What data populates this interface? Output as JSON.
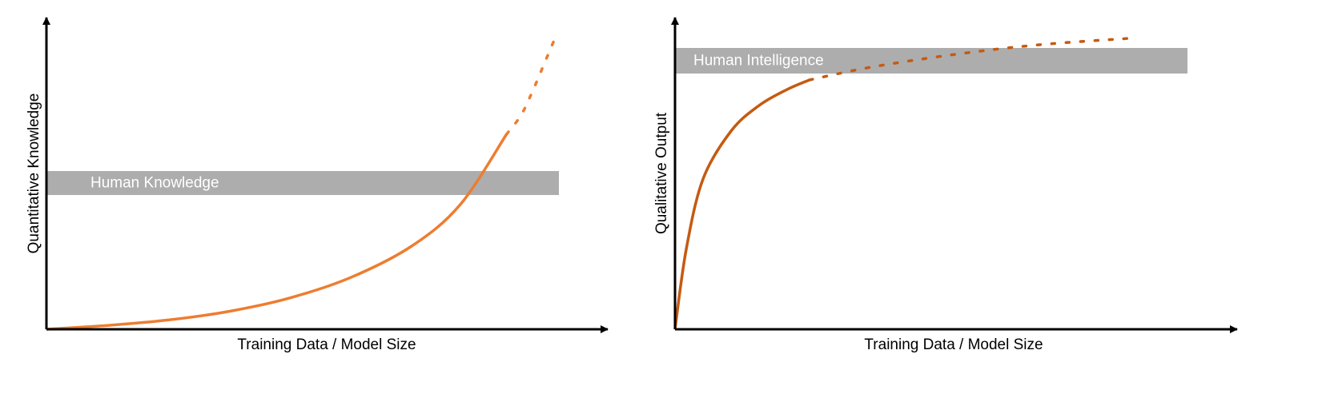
{
  "colors": {
    "background": "#ffffff",
    "axis": "#000000",
    "band": "#adadad",
    "band_text": "#ffffff",
    "left_curve": "#ed7d31",
    "right_curve": "#c55a11"
  },
  "chart_data": [
    {
      "type": "line",
      "title": "",
      "xlabel": "Training Data / Model Size",
      "ylabel": "Quantitative Knowledge",
      "xlim": [
        0,
        1
      ],
      "ylim": [
        0,
        1
      ],
      "grid": false,
      "x_ticks": "none",
      "y_ticks": "none",
      "shape": "exponential growth",
      "reference_band": {
        "label": "Human Knowledge",
        "y_range": [
          0.42,
          0.495
        ]
      },
      "series": [
        {
          "style": "solid",
          "x": [
            0.0,
            0.1,
            0.2,
            0.3,
            0.4,
            0.5,
            0.6,
            0.68,
            0.756
          ],
          "y": [
            0.0,
            0.012,
            0.029,
            0.056,
            0.098,
            0.162,
            0.26,
            0.39,
            0.61
          ]
        },
        {
          "style": "dotted",
          "x": [
            0.756,
            0.78,
            0.8,
            0.82,
            0.84
          ],
          "y": [
            0.61,
            0.67,
            0.75,
            0.84,
            0.93
          ]
        }
      ]
    },
    {
      "type": "line",
      "title": "",
      "xlabel": "Training Data / Model Size",
      "ylabel": "Qualitative Output",
      "xlim": [
        0,
        1
      ],
      "ylim": [
        0,
        1
      ],
      "grid": false,
      "x_ticks": "none",
      "y_ticks": "none",
      "shape": "saturating growth",
      "reference_band": {
        "label": "Human Intelligence",
        "y_range": [
          0.8,
          0.88
        ]
      },
      "series": [
        {
          "style": "solid",
          "x": [
            0.0,
            0.02,
            0.05,
            0.1,
            0.15,
            0.2,
            0.24
          ],
          "y": [
            0.0,
            0.25,
            0.47,
            0.62,
            0.7,
            0.75,
            0.78
          ]
        },
        {
          "style": "dotted",
          "x": [
            0.24,
            0.35,
            0.5,
            0.65,
            0.81
          ],
          "y": [
            0.78,
            0.82,
            0.86,
            0.89,
            0.91
          ]
        }
      ]
    }
  ]
}
